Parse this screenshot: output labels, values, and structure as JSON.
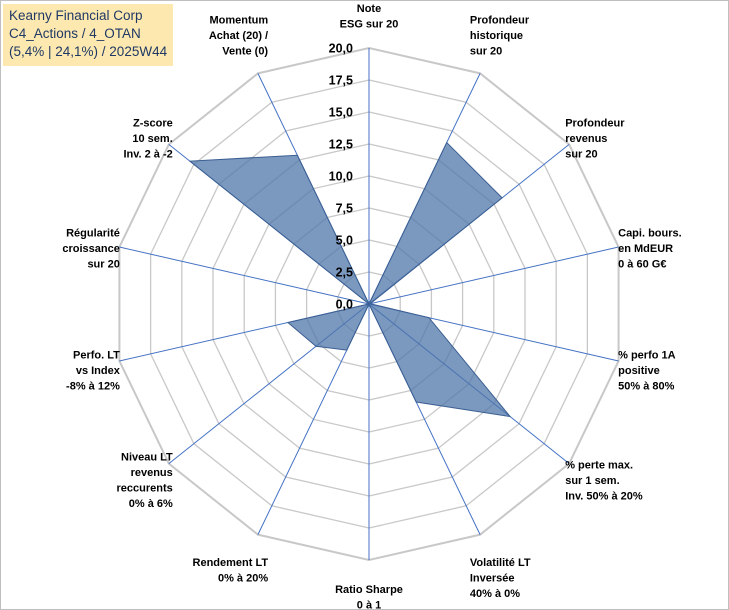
{
  "title_box": {
    "line1": "Kearny Financial Corp",
    "line2": "C4_Actions / 4_OTAN",
    "line3": "(5,4% | 24,1%) / 2025W44"
  },
  "chart_data": {
    "type": "radar",
    "title": "Kearny Financial Corp",
    "rmin": 0,
    "rmax": 20,
    "tick_step": 2.5,
    "tick_labels": [
      "0,0",
      "2,5",
      "5,0",
      "7,5",
      "10,0",
      "12,5",
      "15,0",
      "17,5",
      "20,0"
    ],
    "grid": true,
    "axes": [
      {
        "label": [
          "Note",
          "ESG sur 20"
        ],
        "value": 0.0
      },
      {
        "label": [
          "Profondeur",
          "historique",
          "sur 20"
        ],
        "value": 14.0
      },
      {
        "label": [
          "Profondeur",
          "revenus",
          "sur 20"
        ],
        "value": 13.3
      },
      {
        "label": [
          "Capi. bours.",
          "en MdEUR",
          "0 à 60 G€"
        ],
        "value": 0.1
      },
      {
        "label": [
          "% perfo 1A",
          "positive",
          "50% à 80%"
        ],
        "value": 4.8
      },
      {
        "label": [
          "% perte max.",
          "sur 1 sem.",
          "Inv. 50% à 20%"
        ],
        "value": 14.1
      },
      {
        "label": [
          "Volatilité LT",
          "Inversée",
          "40% à 0%"
        ],
        "value": 8.5
      },
      {
        "label": [
          "Ratio Sharpe",
          "0 à 1"
        ],
        "value": 0.0
      },
      {
        "label": [
          "Rendement LT",
          "0% à 20%"
        ],
        "value": 4.0
      },
      {
        "label": [
          "Niveau LT",
          "revenus",
          "reccurents",
          "0% à 6%"
        ],
        "value": 5.3
      },
      {
        "label": [
          "Perfo. LT",
          "vs Index",
          "-8% à 12%"
        ],
        "value": 6.5
      },
      {
        "label": [
          "Régularité",
          "croissance",
          "sur 20"
        ],
        "value": 0.0
      },
      {
        "label": [
          "Z-score",
          "10 sem.",
          "Inv. 2 à -2"
        ],
        "value": 17.9
      },
      {
        "label": [
          "Momentum",
          "Achat (20) /",
          "Vente (0)"
        ],
        "value": 12.9
      }
    ],
    "colors": {
      "fill": "#4f75aa",
      "fill_opacity": 0.75,
      "stroke": "#3b5f92",
      "grid": "#c8c8c8",
      "spokes": "#4472c4"
    }
  }
}
